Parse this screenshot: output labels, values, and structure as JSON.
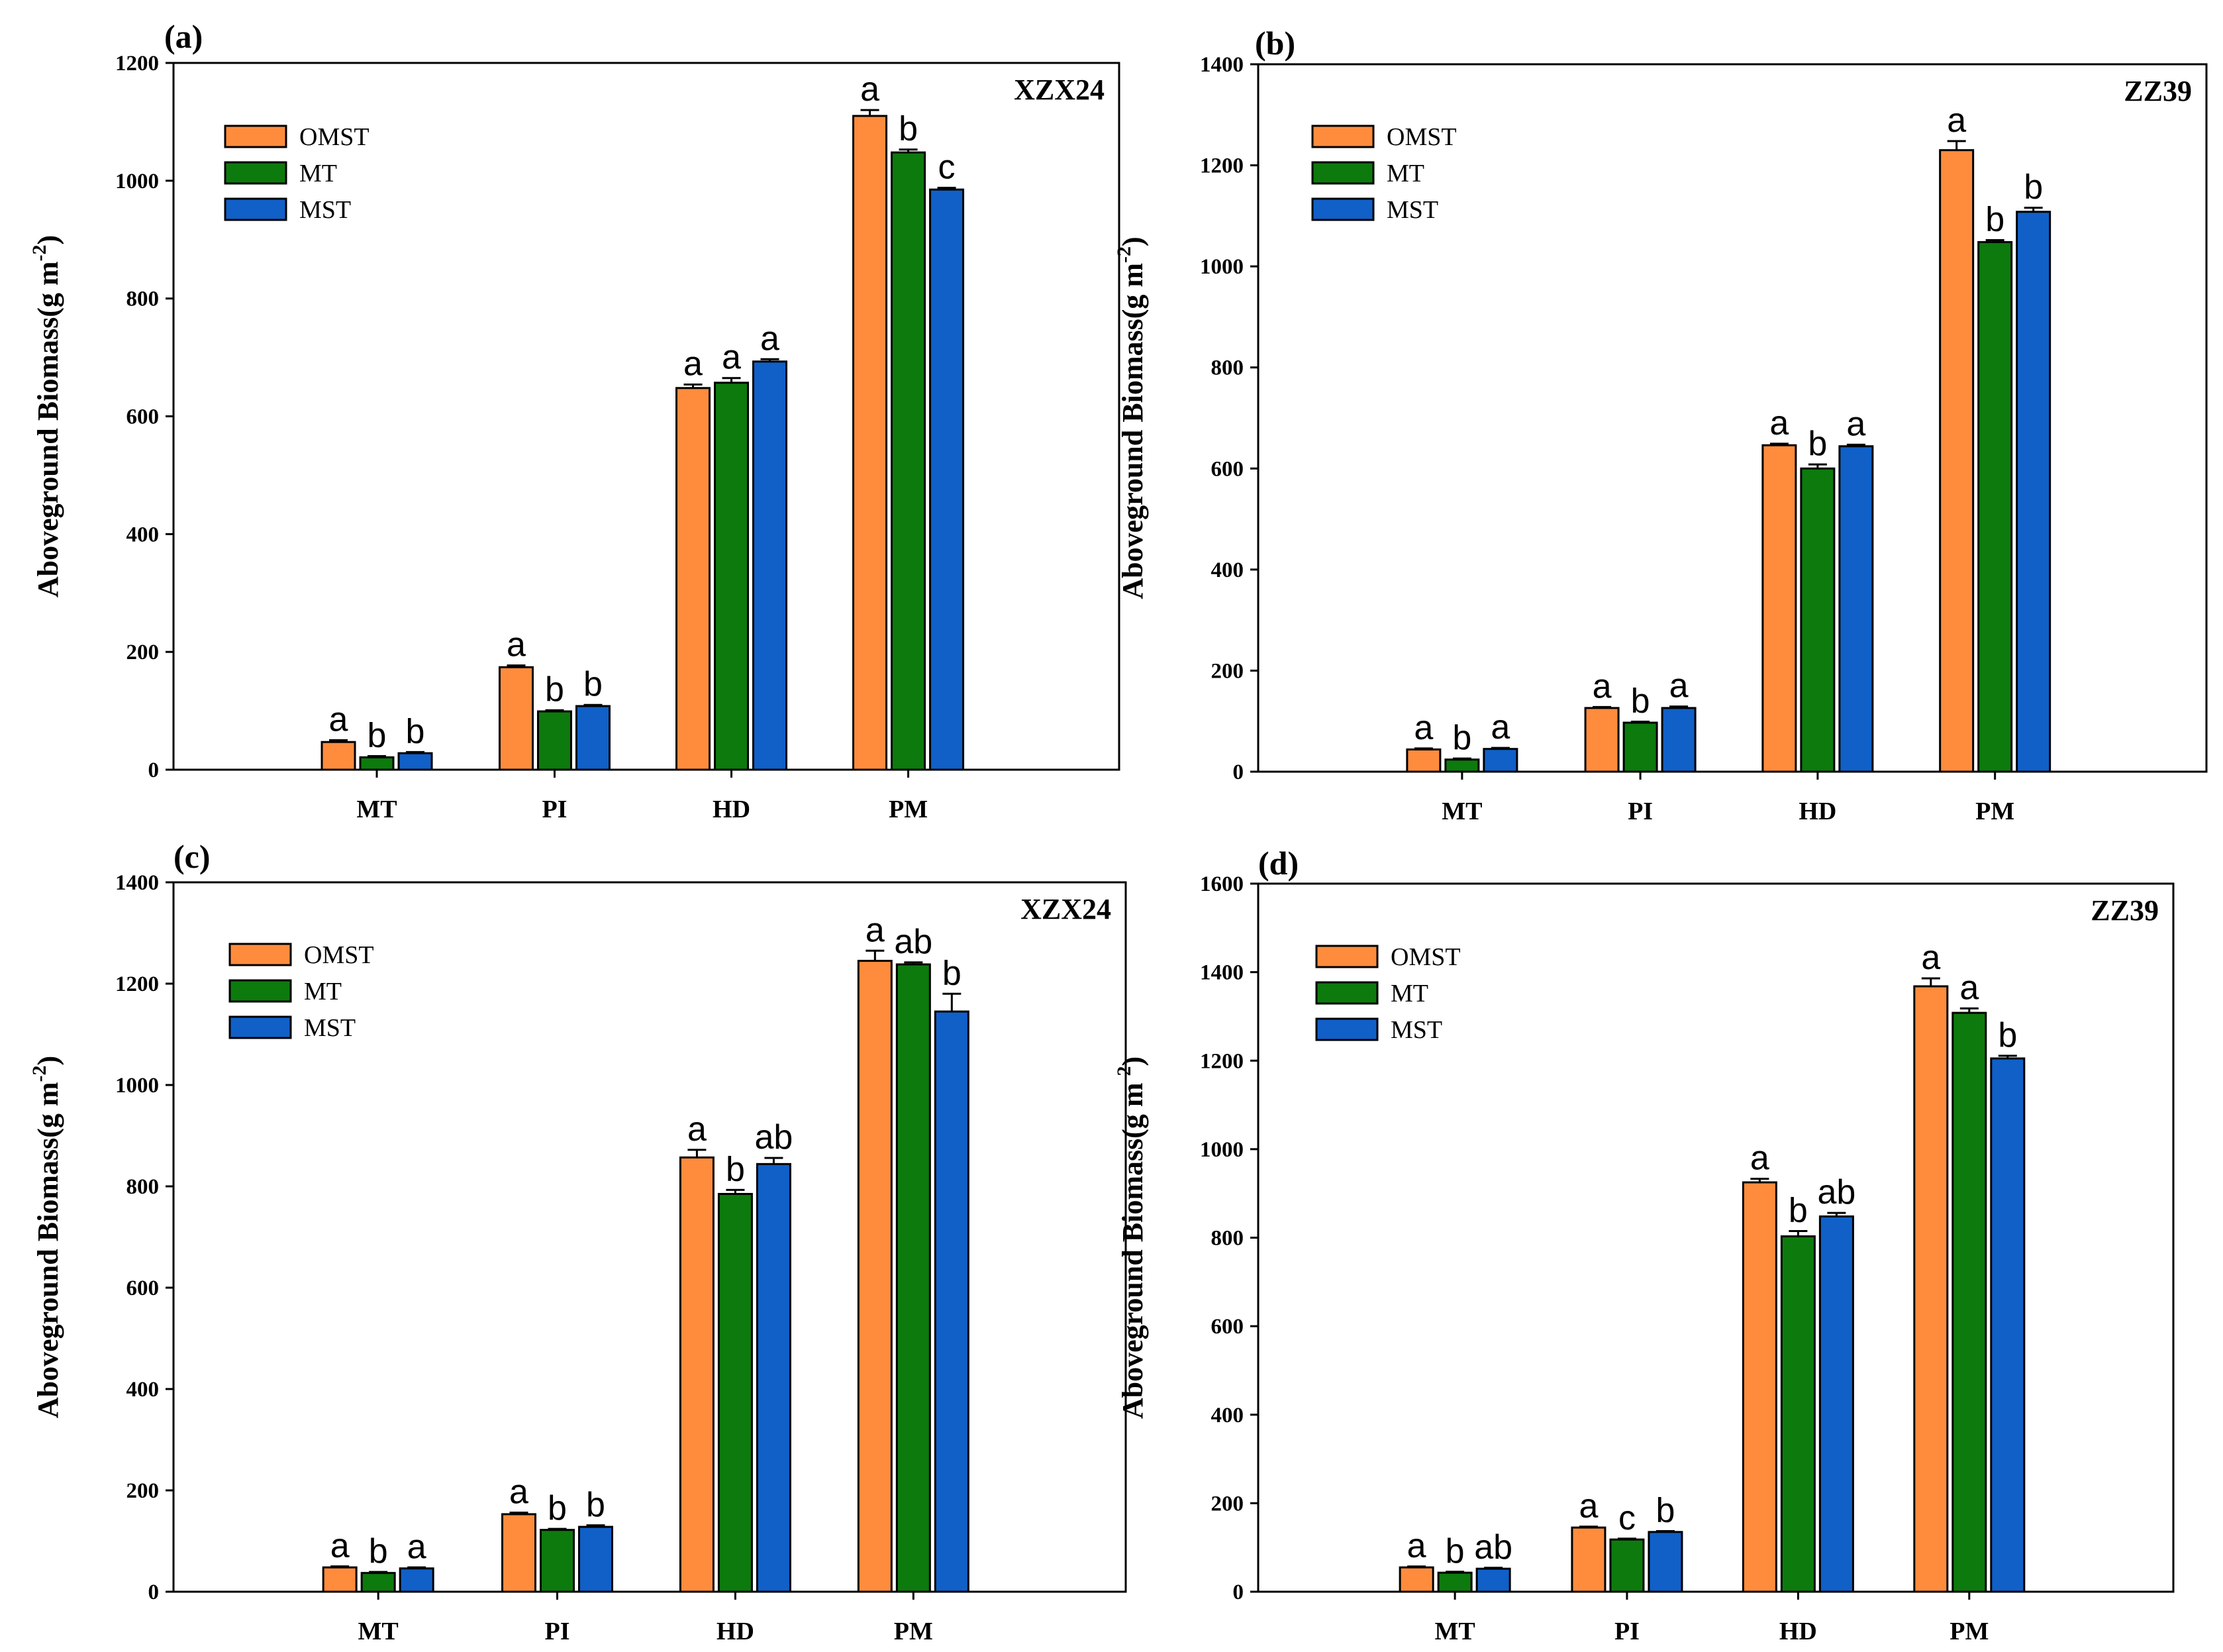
{
  "chart_data": [
    {
      "type": "bar",
      "panel_label": "(a)",
      "cultivar": "XZX24",
      "ylabel_main": "Aboveground Biomass(g m",
      "ylabel_sup": "-2",
      "ylabel_end": ")",
      "categories": [
        "MT",
        "PI",
        "HD",
        "PM"
      ],
      "ylim": [
        0,
        1200
      ],
      "yticks": [
        "0",
        "200",
        "400",
        "600",
        "800",
        "1000",
        "1200"
      ],
      "legend": [
        "OMST",
        "MT",
        "MST"
      ],
      "legend_placement": "top-left",
      "series": [
        {
          "name": "OMST",
          "color": "#FF8C3D",
          "values": [
            47,
            174,
            648,
            1110
          ],
          "errors": [
            3,
            3,
            6,
            10
          ],
          "letters": [
            "a",
            "a",
            "a",
            "a"
          ]
        },
        {
          "name": "MT",
          "color": "#0D7A0D",
          "values": [
            21,
            99,
            657,
            1048
          ],
          "errors": [
            2,
            2,
            8,
            5
          ],
          "letters": [
            "b",
            "b",
            "a",
            "b"
          ]
        },
        {
          "name": "MST",
          "color": "#1060C8",
          "values": [
            28,
            108,
            693,
            985
          ],
          "errors": [
            2,
            2,
            4,
            3
          ],
          "letters": [
            "b",
            "b",
            "a",
            "c"
          ]
        }
      ]
    },
    {
      "type": "bar",
      "panel_label": "(b)",
      "cultivar": "ZZ39",
      "ylabel_main": "Aboveground Biomass(g m",
      "ylabel_sup": "-2",
      "ylabel_end": ")",
      "categories": [
        "MT",
        "PI",
        "HD",
        "PM"
      ],
      "ylim": [
        0,
        1400
      ],
      "yticks": [
        "0",
        "200",
        "400",
        "600",
        "800",
        "1000",
        "1200",
        "1400"
      ],
      "legend": [
        "OMST",
        "MT",
        "MST"
      ],
      "legend_placement": "top-left",
      "series": [
        {
          "name": "OMST",
          "color": "#FF8C3D",
          "values": [
            44,
            126,
            646,
            1230
          ],
          "errors": [
            2,
            2,
            3,
            18
          ],
          "letters": [
            "a",
            "a",
            "a",
            "a"
          ]
        },
        {
          "name": "MT",
          "color": "#0D7A0D",
          "values": [
            24,
            97,
            600,
            1048
          ],
          "errors": [
            2,
            2,
            8,
            4
          ],
          "letters": [
            "b",
            "b",
            "b",
            "b"
          ]
        },
        {
          "name": "MST",
          "color": "#1060C8",
          "values": [
            45,
            126,
            644,
            1108
          ],
          "errors": [
            2,
            3,
            3,
            8
          ],
          "letters": [
            "a",
            "a",
            "a",
            "b"
          ]
        }
      ]
    },
    {
      "type": "bar",
      "panel_label": "(c)",
      "cultivar": "XZX24",
      "ylabel_main": "Aboveground Biomass(g m",
      "ylabel_sup": "-2",
      "ylabel_end": ")",
      "categories": [
        "MT",
        "PI",
        "HD",
        "PM"
      ],
      "ylim": [
        0,
        1400
      ],
      "yticks": [
        "0",
        "200",
        "400",
        "600",
        "800",
        "1000",
        "1200",
        "1400"
      ],
      "legend": [
        "OMST",
        "MT",
        "MST"
      ],
      "legend_placement": "top-left",
      "series": [
        {
          "name": "OMST",
          "color": "#FF8C3D",
          "values": [
            48,
            153,
            857,
            1245
          ],
          "errors": [
            2,
            3,
            15,
            20
          ],
          "letters": [
            "a",
            "a",
            "a",
            "a"
          ]
        },
        {
          "name": "MT",
          "color": "#0D7A0D",
          "values": [
            37,
            122,
            785,
            1238
          ],
          "errors": [
            2,
            2,
            8,
            4
          ],
          "letters": [
            "b",
            "b",
            "b",
            "ab"
          ]
        },
        {
          "name": "MST",
          "color": "#1060C8",
          "values": [
            46,
            128,
            844,
            1145
          ],
          "errors": [
            2,
            3,
            12,
            35
          ],
          "letters": [
            "a",
            "b",
            "ab",
            "b"
          ]
        }
      ]
    },
    {
      "type": "bar",
      "panel_label": "(d)",
      "cultivar": "ZZ39",
      "ylabel_main": "Aboveground Biomass(g m",
      "ylabel_sup": "-2",
      "ylabel_end": ")",
      "categories": [
        "MT",
        "PI",
        "HD",
        "PM"
      ],
      "ylim": [
        0,
        1600
      ],
      "yticks": [
        "0",
        "200",
        "400",
        "600",
        "800",
        "1000",
        "1200",
        "1400",
        "1600"
      ],
      "legend": [
        "OMST",
        "MT",
        "MST"
      ],
      "legend_placement": "top-left",
      "series": [
        {
          "name": "OMST",
          "color": "#FF8C3D",
          "values": [
            55,
            145,
            925,
            1368
          ],
          "errors": [
            2,
            2,
            8,
            18
          ],
          "letters": [
            "a",
            "a",
            "a",
            "a"
          ]
        },
        {
          "name": "MT",
          "color": "#0D7A0D",
          "values": [
            43,
            118,
            803,
            1308
          ],
          "errors": [
            2,
            2,
            12,
            10
          ],
          "letters": [
            "b",
            "c",
            "b",
            "a"
          ]
        },
        {
          "name": "MST",
          "color": "#1060C8",
          "values": [
            52,
            135,
            848,
            1205
          ],
          "errors": [
            2,
            2,
            8,
            6
          ],
          "letters": [
            "ab",
            "b",
            "ab",
            "b"
          ]
        }
      ]
    }
  ]
}
